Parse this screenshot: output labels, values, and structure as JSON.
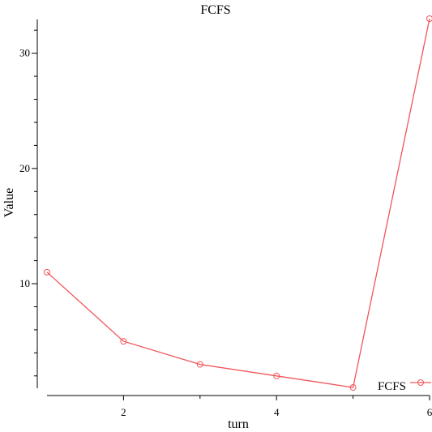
{
  "chart_data": {
    "type": "line",
    "title": "FCFS",
    "xlabel": "turn",
    "ylabel": "Value",
    "x": [
      1,
      2,
      3,
      4,
      5,
      6
    ],
    "series": [
      {
        "name": "FCFS",
        "values": [
          11,
          5,
          3,
          2,
          1,
          33
        ],
        "color": "#f0555a",
        "marker": "circle"
      }
    ],
    "xlim": [
      1,
      6
    ],
    "ylim": [
      1,
      33
    ],
    "x_major_ticks": [
      2,
      4,
      6
    ],
    "x_minor_ticks": [
      3,
      5
    ],
    "y_major_ticks": [
      10,
      20,
      30
    ],
    "y_minor_ticks": [
      2,
      4,
      6,
      8,
      12,
      14,
      16,
      18,
      22,
      24,
      26,
      28,
      32
    ],
    "grid": false,
    "legend_position": "bottom-right"
  }
}
